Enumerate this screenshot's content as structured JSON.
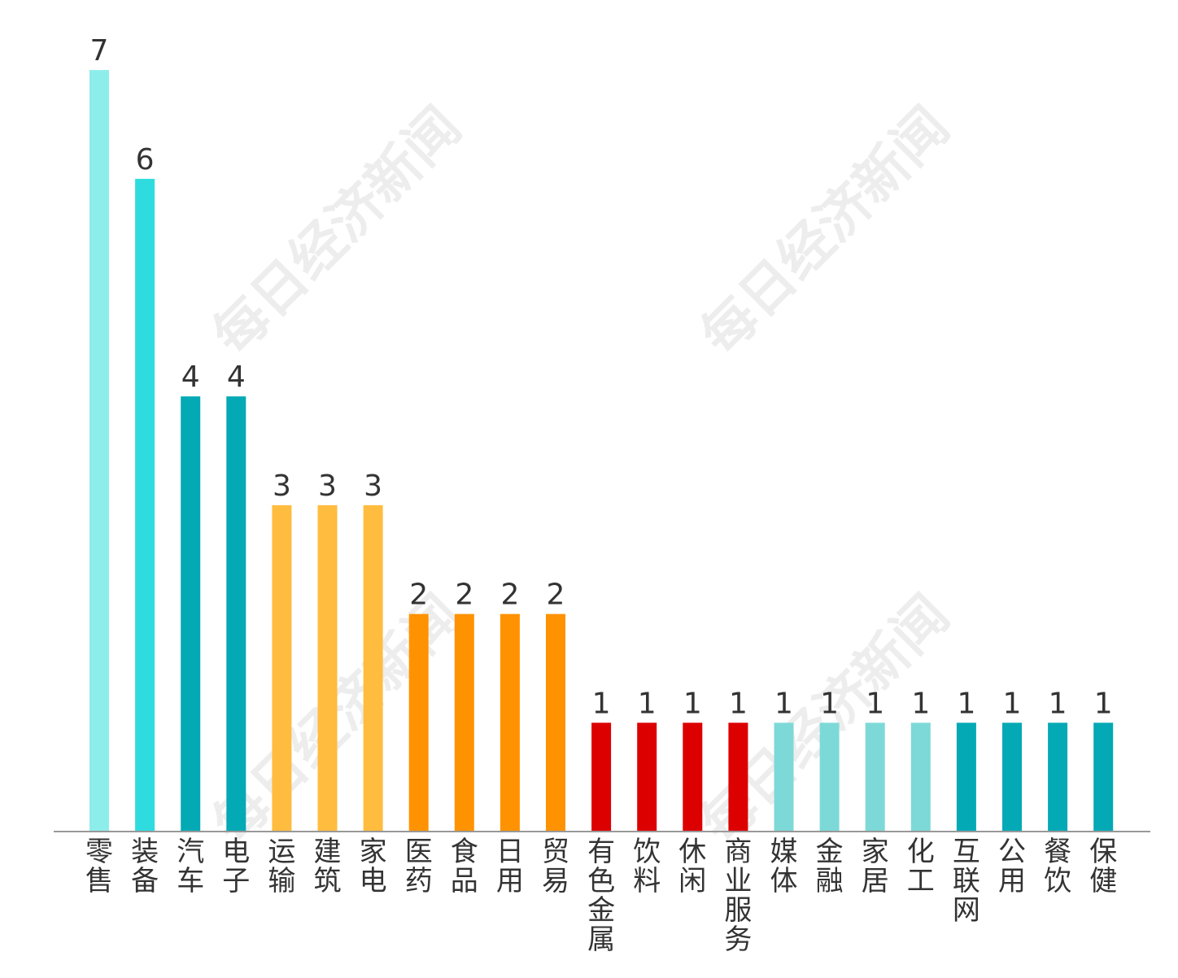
{
  "chart_data": {
    "type": "bar",
    "title": "",
    "xlabel": "",
    "ylabel": "",
    "ylim": [
      0,
      7
    ],
    "grid": false,
    "legend": "none",
    "watermark_text": "每日经济新闻",
    "categories": [
      "零售",
      "装备",
      "汽车",
      "电子",
      "运输",
      "建筑",
      "家电",
      "医药",
      "食品",
      "日用",
      "贸易",
      "有色金属",
      "饮料",
      "休闲",
      "商业服务",
      "媒体",
      "金融",
      "家居",
      "化工",
      "互联网",
      "公用",
      "餐饮",
      "保健"
    ],
    "values": [
      7,
      6,
      4,
      4,
      3,
      3,
      3,
      2,
      2,
      2,
      2,
      1,
      1,
      1,
      1,
      1,
      1,
      1,
      1,
      1,
      1,
      1,
      1
    ],
    "colors": [
      "#8DEDEA",
      "#2EDCDF",
      "#03A9B5",
      "#03A9B5",
      "#FFBC3F",
      "#FFBC3F",
      "#FFBC3F",
      "#FF9200",
      "#FF9200",
      "#FF9200",
      "#FF9200",
      "#DC0000",
      "#DC0000",
      "#DC0000",
      "#DC0000",
      "#7DD9D7",
      "#7DD9D7",
      "#7DD9D7",
      "#7DD9D7",
      "#03A9B5",
      "#03A9B5",
      "#03A9B5",
      "#03A9B5"
    ],
    "axis_color": "#999999"
  }
}
